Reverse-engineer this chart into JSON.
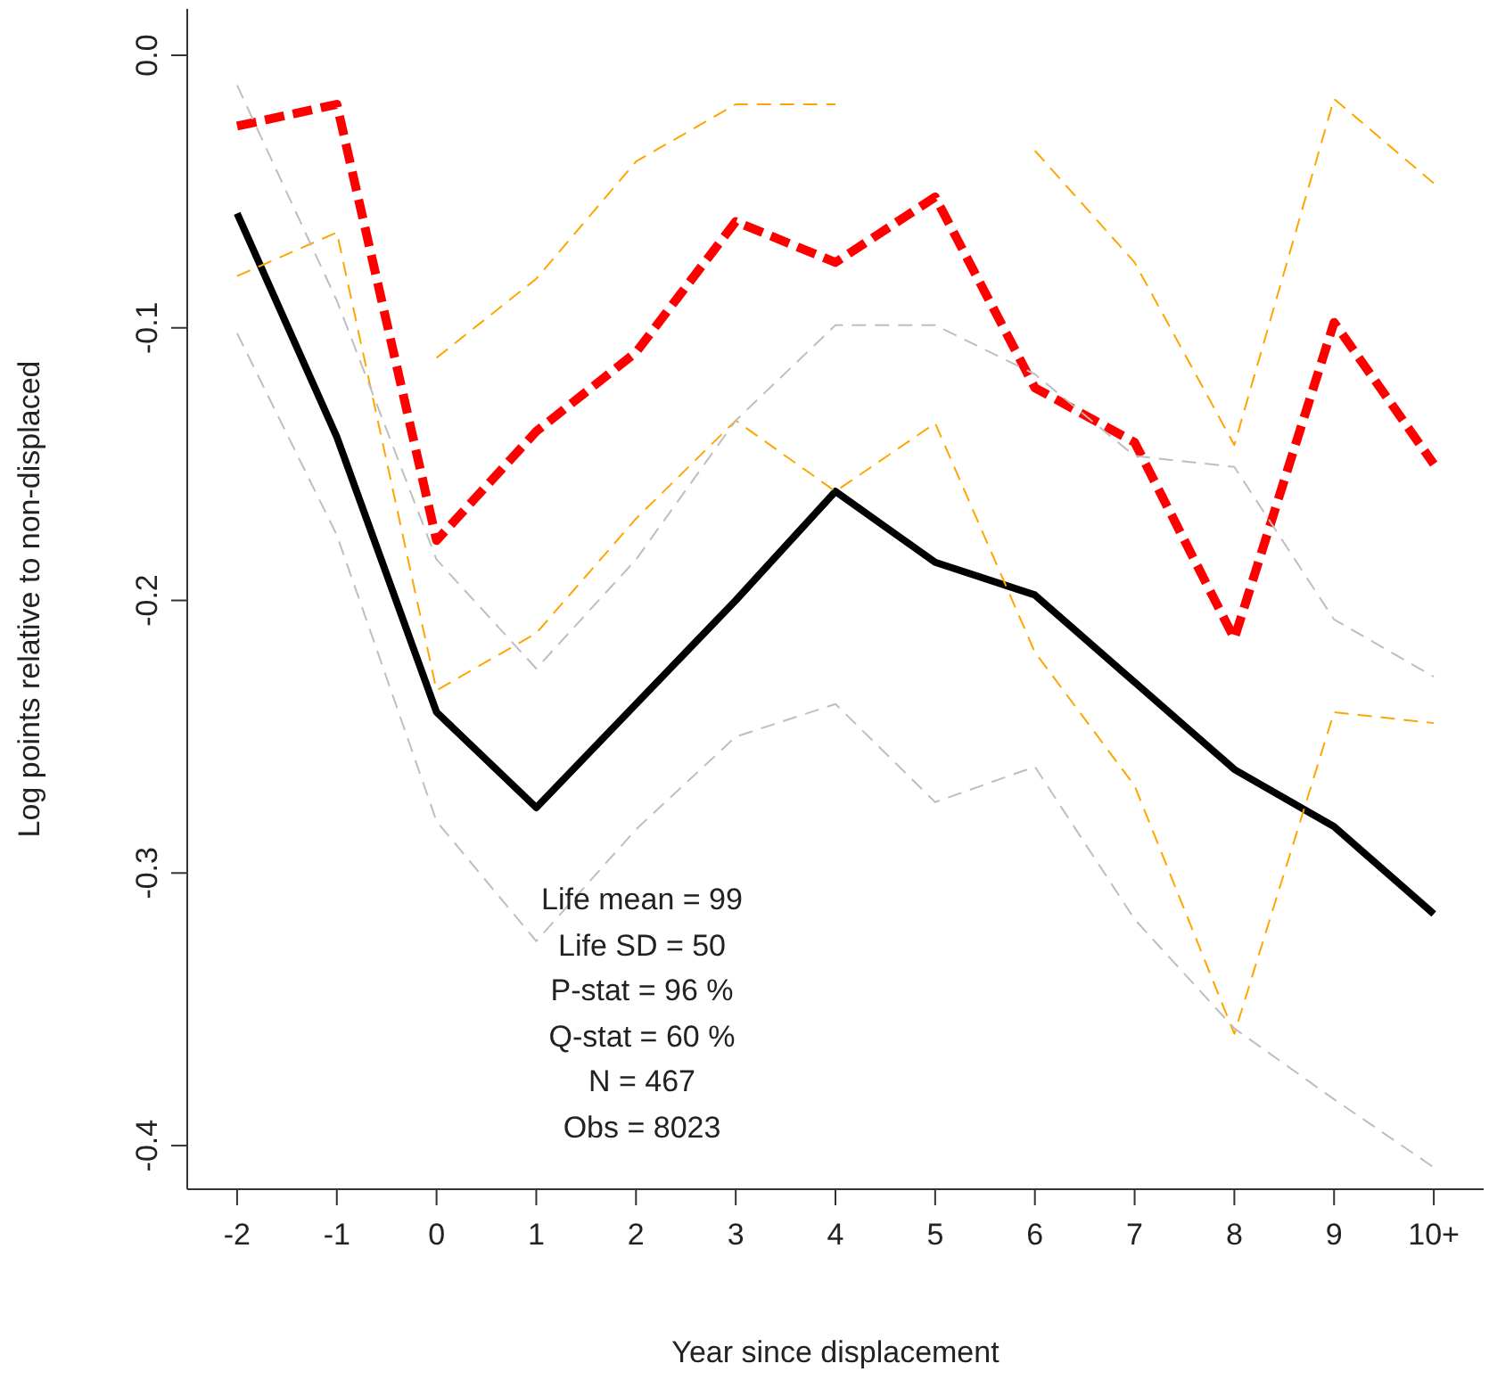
{
  "chart_data": {
    "type": "line",
    "xlabel": "Year since displacement",
    "ylabel": "Log points relative to non-displaced",
    "categories": [
      "-2",
      "-1",
      "0",
      "1",
      "2",
      "3",
      "4",
      "5",
      "6",
      "7",
      "8",
      "9",
      "10+"
    ],
    "ylim": [
      -0.416,
      0.017
    ],
    "yticks": [
      {
        "value": 0,
        "label": "0.0"
      },
      -0.1,
      -0.2,
      -0.3,
      -0.4
    ],
    "marker": "none",
    "series": [
      {
        "color": "#000000",
        "line_style": "solid",
        "values": [
          -0.058,
          -0.14,
          -0.241,
          -0.276,
          -0.238,
          -0.2,
          -0.16,
          -0.186,
          -0.198,
          -0.23,
          -0.262,
          -0.283,
          -0.315
        ]
      },
      {
        "color": "#ff0000",
        "line_style": "dashed",
        "values": [
          -0.026,
          -0.018,
          -0.178,
          -0.138,
          -0.109,
          -0.061,
          -0.076,
          -0.052,
          -0.122,
          -0.142,
          -0.214,
          -0.098,
          -0.15
        ]
      },
      {
        "color": "#ffa500",
        "line_style": "dashed",
        "values": [
          null,
          null,
          -0.111,
          -0.082,
          -0.039,
          -0.018,
          -0.018,
          null,
          -0.035,
          -0.076,
          -0.143,
          -0.016,
          -0.047
        ]
      },
      {
        "color": "#ffa500",
        "line_style": "dashed",
        "values": [
          -0.081,
          -0.065,
          -0.233,
          -0.212,
          -0.17,
          -0.134,
          -0.16,
          -0.135,
          -0.219,
          -0.268,
          -0.359,
          -0.241,
          -0.245
        ]
      },
      {
        "color": "#bebebe",
        "line_style": "dashed",
        "values": [
          -0.011,
          -0.09,
          -0.185,
          -0.225,
          -0.185,
          -0.134,
          -0.099,
          -0.099,
          -0.117,
          -0.147,
          -0.151,
          -0.207,
          -0.228
        ]
      },
      {
        "color": "#bebebe",
        "line_style": "dashed",
        "values": [
          -0.102,
          -0.176,
          -0.281,
          -0.325,
          -0.284,
          -0.25,
          -0.238,
          -0.274,
          -0.261,
          -0.317,
          -0.357,
          -0.383,
          -0.408
        ]
      }
    ],
    "annotations": [
      "Life mean = 99",
      "Life SD = 50",
      "P-stat = 96 %",
      "Q-stat = 60 %",
      "N = 467",
      "Obs = 8023"
    ]
  }
}
